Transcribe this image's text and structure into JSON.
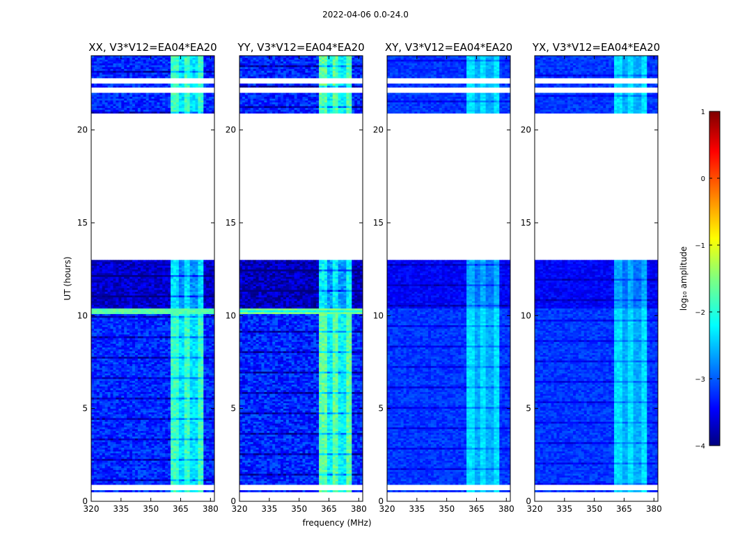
{
  "chart_data": {
    "type": "heatmap",
    "suptitle": "2022-04-06 0.0-24.0",
    "xlabel": "frequency (MHz)",
    "ylabel": "UT (hours)",
    "xlim": [
      320,
      382
    ],
    "ylim": [
      0,
      24
    ],
    "xticks": [
      320,
      335,
      350,
      365,
      380
    ],
    "yticks": [
      0,
      5,
      10,
      15,
      20
    ],
    "colorbar": {
      "label": "log₁₀ amplitude",
      "range": [
        -4,
        1
      ],
      "ticks": [
        "1",
        "0",
        "−1",
        "−2",
        "−3",
        "−4"
      ],
      "colormap": "jet",
      "colors": [
        "#00007f",
        "#0000ff",
        "#007fff",
        "#00ffff",
        "#7fff7f",
        "#ffff00",
        "#ff7f00",
        "#ff0000",
        "#7f0000"
      ]
    },
    "panels": [
      {
        "title": "XX, V3*V12=EA04*EA20",
        "cutoff": 0.88
      },
      {
        "title": "YY, V3*V12=EA04*EA20",
        "cutoff": 1.0
      },
      {
        "title": "XY, V3*V12=EA04*EA20",
        "cutoff": 0.55
      },
      {
        "title": "YX, V3*V12=EA04*EA20",
        "cutoff": 0.55
      }
    ],
    "data_gaps_ut": [
      [
        0.0,
        0.5
      ],
      [
        0.62,
        0.9
      ],
      [
        13.0,
        20.9
      ],
      [
        22.05,
        22.3
      ],
      [
        22.55,
        22.8
      ]
    ],
    "strong_rfi_band_mhz": [
      360,
      377
    ],
    "approx_log_amplitude": {
      "background": -3.2,
      "rfi_band": -1.8,
      "ut_10_xx_yy": -1.5
    }
  }
}
